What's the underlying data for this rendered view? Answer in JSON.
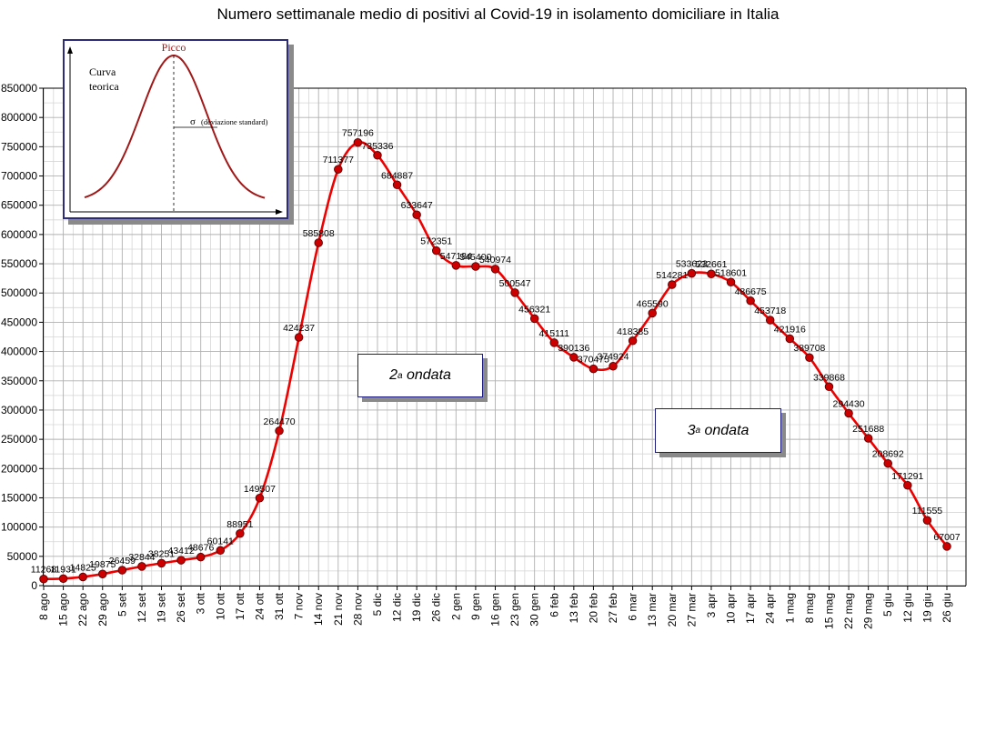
{
  "chart_data": {
    "type": "line",
    "title": "Numero settimanale medio di positivi al Covid-19  in isolamento domiciliare in Italia",
    "xlabel": "",
    "ylabel": "",
    "ylim": [
      0,
      850000
    ],
    "yticks": [
      0,
      50000,
      100000,
      150000,
      200000,
      250000,
      300000,
      350000,
      400000,
      450000,
      500000,
      550000,
      600000,
      650000,
      700000,
      750000,
      800000,
      850000
    ],
    "grid": true,
    "line_color": "#ee0000",
    "marker_color": "#cc0000",
    "categories": [
      "8 ago",
      "15 ago",
      "22 ago",
      "29 ago",
      "5 set",
      "12 set",
      "19 set",
      "26 set",
      "3 ott",
      "10 ott",
      "17 ott",
      "24 ott",
      "31 ott",
      "7 nov",
      "14 nov",
      "21 nov",
      "28 nov",
      "5 dic",
      "12 dic",
      "19 dic",
      "26 dic",
      "2 gen",
      "9 gen",
      "16 gen",
      "23 gen",
      "30 gen",
      "6 feb",
      "13 feb",
      "20 feb",
      "27 feb",
      "6 mar",
      "13 mar",
      "20 mar",
      "27 mar",
      "3 apr",
      "10 apr",
      "17 apr",
      "24 apr",
      "1 mag",
      "8 mag",
      "15 mag",
      "22 mag",
      "29 mag",
      "5 giu",
      "12 giu",
      "19 giu",
      "26 giu"
    ],
    "series": [
      {
        "values": [
          11268,
          11931,
          14825,
          19875,
          26459,
          32844,
          38251,
          43412,
          48676,
          60141,
          88951,
          149507,
          264470,
          424237,
          585808,
          711377,
          757196,
          735336,
          684887,
          633647,
          572351,
          547184,
          545400,
          540974,
          500547,
          456321,
          415111,
          390136,
          370475,
          374924,
          418385,
          465590,
          514281,
          533623,
          532661,
          518601,
          486675,
          453718,
          421916,
          389708,
          339868,
          294430,
          251688,
          208692,
          171291,
          111555,
          67007
        ],
        "labels": [
          "11268",
          "11931",
          "14825",
          "19875",
          "26459",
          "32844",
          "38251",
          "43412",
          "48676",
          "60141",
          "88951",
          "149507",
          "264470",
          "424237",
          "585808",
          "711377",
          "757196",
          "735336",
          "684887",
          "633647",
          "572351",
          "547184",
          "545400",
          "540974",
          "500547",
          "456321",
          "415111",
          "390136",
          "370475",
          "374924",
          "418385",
          "465590",
          "514281",
          "533623",
          "532661",
          "518601",
          "486675",
          "453718",
          "421916",
          "389708",
          "339868",
          "294430",
          "251688",
          "208692",
          "171291",
          "111555",
          "67007"
        ]
      }
    ],
    "annotations": {
      "wave2": {
        "base": "2",
        "sup": "a",
        "text": " ondata"
      },
      "wave3": {
        "base": "3",
        "sup": "a",
        "text": " ondata"
      }
    },
    "inset": {
      "peak_label": "Picco",
      "curve_label_1": "Curva",
      "curve_label_2": "teorica",
      "sigma_symbol": "σ",
      "sigma_label": "(deviazione standard)",
      "curve_color": "#a01818"
    }
  }
}
